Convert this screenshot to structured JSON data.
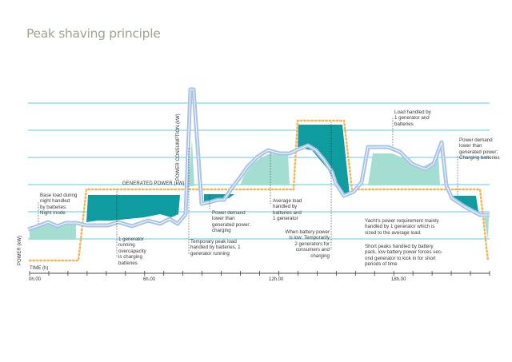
{
  "title": "Peak shaving principle",
  "axes": {
    "y_label": "POWER (kW)",
    "x_label": "TIME (h)",
    "x_ticks": [
      "0h.00",
      "6h.00",
      "12h.00",
      "18h.00"
    ]
  },
  "series_labels": {
    "consumption": "POWER CONSUMPTION (kW)",
    "generated": "GENERATED POWER (kW)"
  },
  "colors": {
    "grid": "#5ccbe0",
    "consumption_line": "#a9c3e6",
    "battery_discharge": "#a4ddd2",
    "battery_charge": "#0e9ca0",
    "generated_dots": "#f2b65b",
    "title": "#9aa690"
  },
  "annotations": [
    {
      "id": "night",
      "text": "Base load during\nnight handled\nby batteries:\nNight mode"
    },
    {
      "id": "overcapacity",
      "text": "1 generator\nrunning\novercapacity\nis charging\nbatteries"
    },
    {
      "id": "temp-peak",
      "text": "Temporary peak load\nhandled by batteries, 1\ngenerator running"
    },
    {
      "id": "demand-lower-1",
      "text": "Power demand\nlower than\ngenerated power:\ncharging"
    },
    {
      "id": "average",
      "text": "Average load\nhandled by\nbatteries and\n1 generator"
    },
    {
      "id": "battery-low",
      "text": "When battery power\nis low: Temporarily\n2 generators for\nconsumers and\ncharging"
    },
    {
      "id": "load-handled",
      "text": "Load handled by\n1 generator and\nbatteries"
    },
    {
      "id": "demand-lower-2",
      "text": "Power demand\nlower than\ngenerated power:\nCharging batteries"
    },
    {
      "id": "yacht",
      "text": "Yacht's power requirement mainly\nhandled by 1 generator which is\nsized to the average load."
    },
    {
      "id": "short-peaks",
      "text": "Short peaks handled by battery\npack, low battery power forces sec-\nond generator to kick in for short\nperiods of time"
    }
  ]
}
